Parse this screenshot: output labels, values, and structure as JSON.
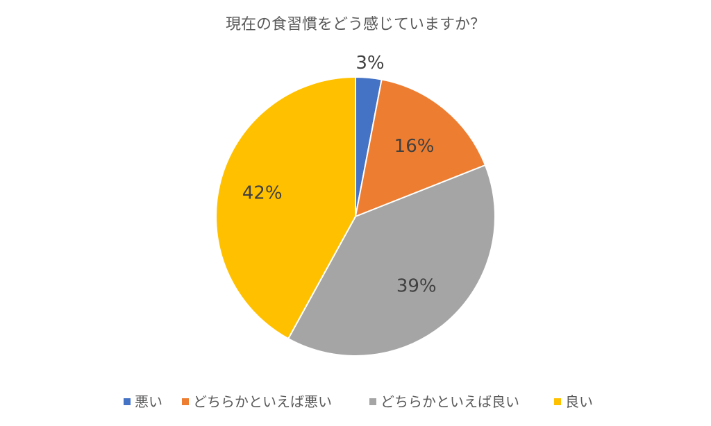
{
  "chart_data": {
    "type": "pie",
    "title": "現在の食習慣をどう感じていますか？",
    "categories": [
      "悪い",
      "どちらかといえば悪い",
      "どちらかといえば良い",
      "良い"
    ],
    "values": [
      3,
      16,
      39,
      42
    ],
    "value_labels": [
      "3%",
      "16%",
      "39%",
      "42%"
    ],
    "colors": [
      "#4472C4",
      "#ED7D31",
      "#A5A5A5",
      "#FFC000"
    ],
    "start_angle": "12 o'clock",
    "direction": "clockwise",
    "legend_position": "bottom"
  }
}
